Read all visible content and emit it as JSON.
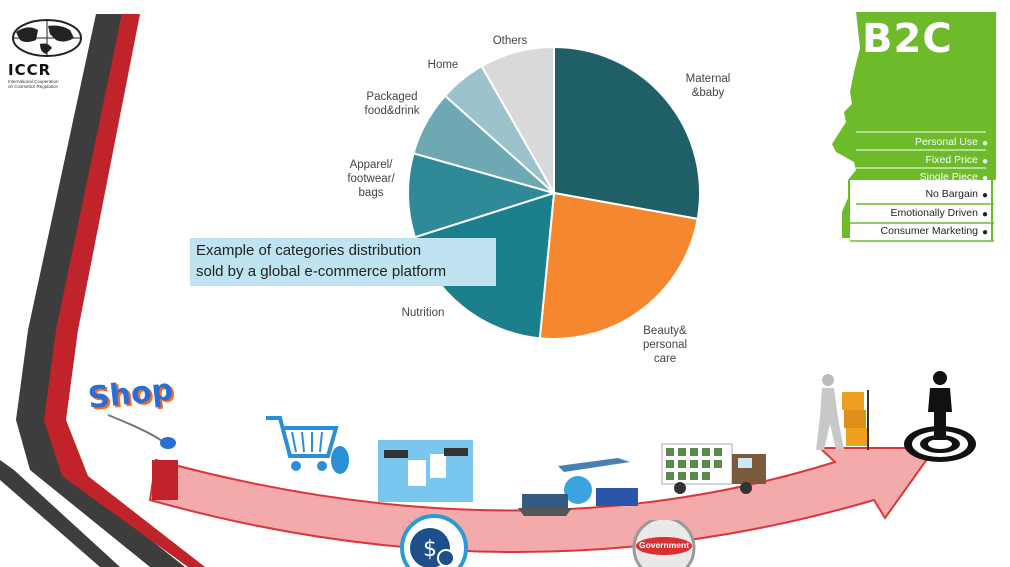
{
  "logo": {
    "main": "ICCR",
    "sub_line1": "International Cooperation",
    "sub_line2": "on Cosmetics Regulation"
  },
  "chart_data": {
    "type": "pie",
    "title": "",
    "slices": [
      {
        "label": "Maternal\n&baby",
        "value": 27,
        "color": "#1f5f66"
      },
      {
        "label": "Beauty&\npersonal\ncare",
        "value": 23,
        "color": "#f5882f"
      },
      {
        "label": "Nutrition",
        "value": 18,
        "color": "#1b7f8c"
      },
      {
        "label": "Apparel/\nfootwear/\nbags",
        "value": 9,
        "color": "#2e8a97"
      },
      {
        "label": "Packaged\nfood&drink",
        "value": 7,
        "color": "#6ea8b3"
      },
      {
        "label": "Home",
        "value": 5,
        "color": "#9cc3cb"
      },
      {
        "label": "Others",
        "value": 8,
        "color": "#d9d9d9"
      }
    ]
  },
  "callout": {
    "text": "Example of categories distribution\nsold by a global e-commerce platform"
  },
  "b2c": {
    "title": "B2C",
    "items_light": [
      "Personal Use",
      "Fixed Price",
      "Single Piece"
    ],
    "items_dark": [
      "No Bargain",
      "Emotionally Driven",
      "Consumer Marketing"
    ],
    "color": "#6dbb2b"
  },
  "shop": {
    "label": "Shop"
  },
  "government": {
    "label": "Government"
  },
  "colors": {
    "dark_stripe": "#3d3d3d",
    "red_stripe": "#c0242a",
    "arrow_fill": "#f4a9aa",
    "arrow_stroke": "#d8383d"
  }
}
